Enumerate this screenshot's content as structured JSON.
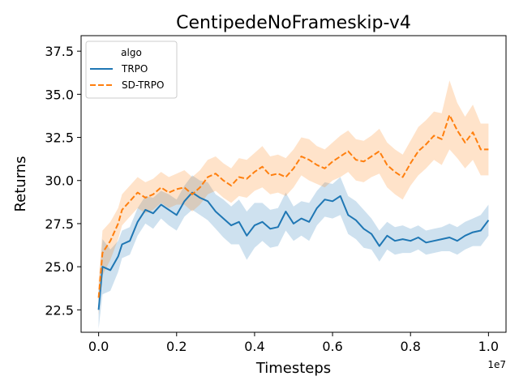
{
  "chart_data": {
    "type": "line",
    "title": "CentipedeNoFrameskip-v4",
    "xlabel": "Timesteps",
    "ylabel": "Returns",
    "x_offset_label": "1e7",
    "xlim": [
      -0.045,
      1.045
    ],
    "ylim": [
      21.2,
      38.4
    ],
    "xticks": [
      0.0,
      0.2,
      0.4,
      0.6,
      0.8,
      1.0
    ],
    "xtick_labels": [
      "0.0",
      "0.2",
      "0.4",
      "0.6",
      "0.8",
      "1.0"
    ],
    "yticks": [
      22.5,
      25.0,
      27.5,
      30.0,
      32.5,
      35.0,
      37.5
    ],
    "ytick_labels": [
      "22.5",
      "25.0",
      "27.5",
      "30.0",
      "32.5",
      "35.0",
      "37.5"
    ],
    "grid": false,
    "legend": {
      "title": "algo",
      "placement": "top-left"
    },
    "series": [
      {
        "name": "TRPO",
        "color": "#1f77b4",
        "dash": "solid",
        "points": [
          [
            0.0,
            22.5
          ],
          [
            0.01,
            25.0
          ],
          [
            0.03,
            24.8
          ],
          [
            0.05,
            25.6
          ],
          [
            0.06,
            26.3
          ],
          [
            0.08,
            26.5
          ],
          [
            0.1,
            27.6
          ],
          [
            0.12,
            28.3
          ],
          [
            0.14,
            28.1
          ],
          [
            0.16,
            28.6
          ],
          [
            0.18,
            28.3
          ],
          [
            0.2,
            28.0
          ],
          [
            0.22,
            28.8
          ],
          [
            0.24,
            29.3
          ],
          [
            0.26,
            29.0
          ],
          [
            0.28,
            28.8
          ],
          [
            0.3,
            28.2
          ],
          [
            0.32,
            27.8
          ],
          [
            0.34,
            27.4
          ],
          [
            0.36,
            27.6
          ],
          [
            0.38,
            26.8
          ],
          [
            0.4,
            27.4
          ],
          [
            0.42,
            27.6
          ],
          [
            0.44,
            27.2
          ],
          [
            0.46,
            27.3
          ],
          [
            0.48,
            28.2
          ],
          [
            0.5,
            27.5
          ],
          [
            0.52,
            27.8
          ],
          [
            0.54,
            27.6
          ],
          [
            0.56,
            28.4
          ],
          [
            0.58,
            28.9
          ],
          [
            0.6,
            28.8
          ],
          [
            0.62,
            29.1
          ],
          [
            0.64,
            28.0
          ],
          [
            0.66,
            27.7
          ],
          [
            0.68,
            27.2
          ],
          [
            0.7,
            26.9
          ],
          [
            0.72,
            26.2
          ],
          [
            0.74,
            26.8
          ],
          [
            0.76,
            26.5
          ],
          [
            0.78,
            26.6
          ],
          [
            0.8,
            26.5
          ],
          [
            0.82,
            26.7
          ],
          [
            0.84,
            26.4
          ],
          [
            0.86,
            26.5
          ],
          [
            0.88,
            26.6
          ],
          [
            0.9,
            26.7
          ],
          [
            0.92,
            26.5
          ],
          [
            0.94,
            26.8
          ],
          [
            0.96,
            27.0
          ],
          [
            0.98,
            27.1
          ],
          [
            1.0,
            27.7
          ]
        ],
        "band_halfwidth": [
          1.1,
          1.6,
          1.2,
          0.9,
          0.8,
          0.8,
          0.8,
          0.8,
          0.9,
          0.8,
          0.9,
          0.9,
          0.9,
          1.0,
          1.0,
          1.1,
          1.0,
          1.1,
          1.1,
          1.3,
          1.4,
          1.3,
          1.1,
          1.1,
          1.1,
          1.1,
          1.0,
          1.0,
          1.1,
          1.0,
          1.0,
          1.0,
          1.1,
          1.1,
          1.1,
          1.1,
          0.9,
          0.9,
          0.8,
          0.8,
          0.8,
          0.7,
          0.7,
          0.7,
          0.7,
          0.7,
          0.8,
          0.8,
          0.8,
          0.8,
          0.9,
          0.9
        ]
      },
      {
        "name": "SD-TRPO",
        "color": "#ff7f0e",
        "dash": "dashed",
        "points": [
          [
            0.0,
            23.2
          ],
          [
            0.01,
            25.8
          ],
          [
            0.03,
            26.5
          ],
          [
            0.05,
            27.5
          ],
          [
            0.06,
            28.3
          ],
          [
            0.08,
            28.8
          ],
          [
            0.1,
            29.3
          ],
          [
            0.12,
            29.0
          ],
          [
            0.14,
            29.2
          ],
          [
            0.16,
            29.6
          ],
          [
            0.18,
            29.3
          ],
          [
            0.2,
            29.5
          ],
          [
            0.22,
            29.6
          ],
          [
            0.24,
            29.2
          ],
          [
            0.26,
            29.6
          ],
          [
            0.28,
            30.2
          ],
          [
            0.3,
            30.4
          ],
          [
            0.32,
            30.0
          ],
          [
            0.34,
            29.7
          ],
          [
            0.36,
            30.2
          ],
          [
            0.38,
            30.1
          ],
          [
            0.4,
            30.5
          ],
          [
            0.42,
            30.8
          ],
          [
            0.44,
            30.3
          ],
          [
            0.46,
            30.4
          ],
          [
            0.48,
            30.2
          ],
          [
            0.5,
            30.7
          ],
          [
            0.52,
            31.4
          ],
          [
            0.54,
            31.2
          ],
          [
            0.56,
            30.9
          ],
          [
            0.58,
            30.7
          ],
          [
            0.6,
            31.1
          ],
          [
            0.62,
            31.4
          ],
          [
            0.64,
            31.7
          ],
          [
            0.66,
            31.2
          ],
          [
            0.68,
            31.1
          ],
          [
            0.7,
            31.4
          ],
          [
            0.72,
            31.7
          ],
          [
            0.74,
            30.9
          ],
          [
            0.76,
            30.5
          ],
          [
            0.78,
            30.2
          ],
          [
            0.8,
            31.0
          ],
          [
            0.82,
            31.7
          ],
          [
            0.84,
            32.1
          ],
          [
            0.86,
            32.6
          ],
          [
            0.88,
            32.4
          ],
          [
            0.9,
            33.8
          ],
          [
            0.92,
            32.9
          ],
          [
            0.94,
            32.2
          ],
          [
            0.96,
            32.8
          ],
          [
            0.98,
            31.8
          ],
          [
            1.0,
            31.8
          ]
        ],
        "band_halfwidth": [
          1.0,
          1.3,
          1.1,
          0.9,
          0.9,
          0.9,
          0.9,
          0.9,
          0.9,
          0.9,
          0.9,
          0.9,
          1.0,
          1.0,
          1.0,
          1.0,
          1.0,
          1.0,
          1.0,
          1.1,
          1.1,
          1.1,
          1.2,
          1.1,
          1.1,
          1.1,
          1.1,
          1.1,
          1.2,
          1.1,
          1.1,
          1.1,
          1.2,
          1.2,
          1.2,
          1.2,
          1.2,
          1.3,
          1.3,
          1.3,
          1.3,
          1.3,
          1.4,
          1.4,
          1.4,
          1.5,
          2.0,
          1.6,
          1.5,
          1.6,
          1.5,
          1.5
        ]
      }
    ]
  }
}
